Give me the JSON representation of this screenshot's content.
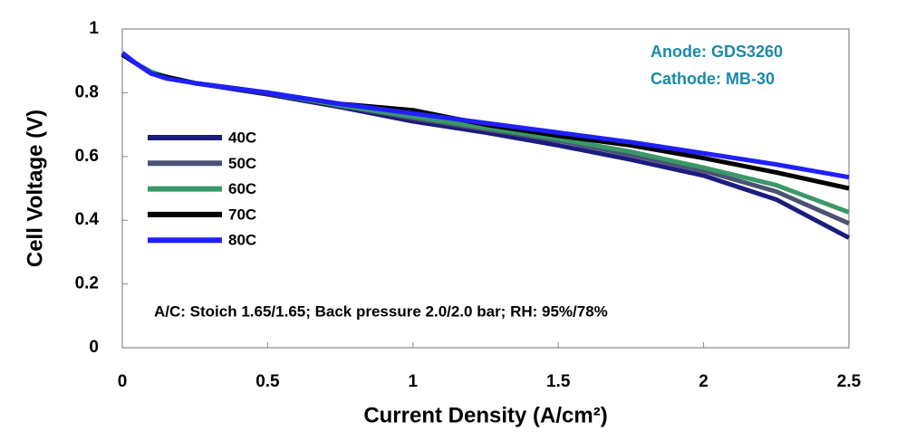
{
  "chart_data": {
    "type": "line",
    "x_label": "Current Density (A/cm²)",
    "y_label": "Cell Voltage (V)",
    "annotations": [
      "Anode: GDS3260",
      "Cathode: MB-30",
      "A/C: Stoich 1.65/1.65; Back pressure 2.0/2.0 bar; RH: 95%/78%"
    ],
    "x": [
      0,
      0.05,
      0.1,
      0.15,
      0.25,
      0.5,
      0.75,
      1,
      1.25,
      1.5,
      1.75,
      2,
      2.25,
      2.5
    ],
    "series": [
      {
        "name": "40C",
        "color": "#1c1c7c",
        "values": [
          0.92,
          0.89,
          0.86,
          0.85,
          0.83,
          0.795,
          0.755,
          0.71,
          0.675,
          0.635,
          0.59,
          0.54,
          0.465,
          0.345
        ]
      },
      {
        "name": "50C",
        "color": "#4b5274",
        "values": [
          0.92,
          0.89,
          0.865,
          0.85,
          0.83,
          0.8,
          0.76,
          0.72,
          0.685,
          0.65,
          0.605,
          0.555,
          0.49,
          0.39
        ]
      },
      {
        "name": "60C",
        "color": "#3a9868",
        "values": [
          0.92,
          0.89,
          0.865,
          0.85,
          0.83,
          0.8,
          0.76,
          0.725,
          0.69,
          0.655,
          0.615,
          0.565,
          0.51,
          0.425
        ]
      },
      {
        "name": "70C",
        "color": "#000000",
        "values": [
          0.92,
          0.89,
          0.86,
          0.85,
          0.83,
          0.8,
          0.765,
          0.745,
          0.7,
          0.665,
          0.635,
          0.595,
          0.55,
          0.5
        ]
      },
      {
        "name": "80C",
        "color": "#1f1fff",
        "values": [
          0.925,
          0.89,
          0.86,
          0.845,
          0.83,
          0.8,
          0.765,
          0.735,
          0.705,
          0.675,
          0.645,
          0.61,
          0.575,
          0.535
        ]
      }
    ],
    "xlim": [
      0,
      2.5
    ],
    "xticks": [
      0,
      0.5,
      1,
      1.5,
      2,
      2.5
    ],
    "ylim": [
      0,
      1
    ],
    "yticks": [
      0,
      0.2,
      0.4,
      0.6,
      0.8,
      1
    ],
    "grid": false
  }
}
